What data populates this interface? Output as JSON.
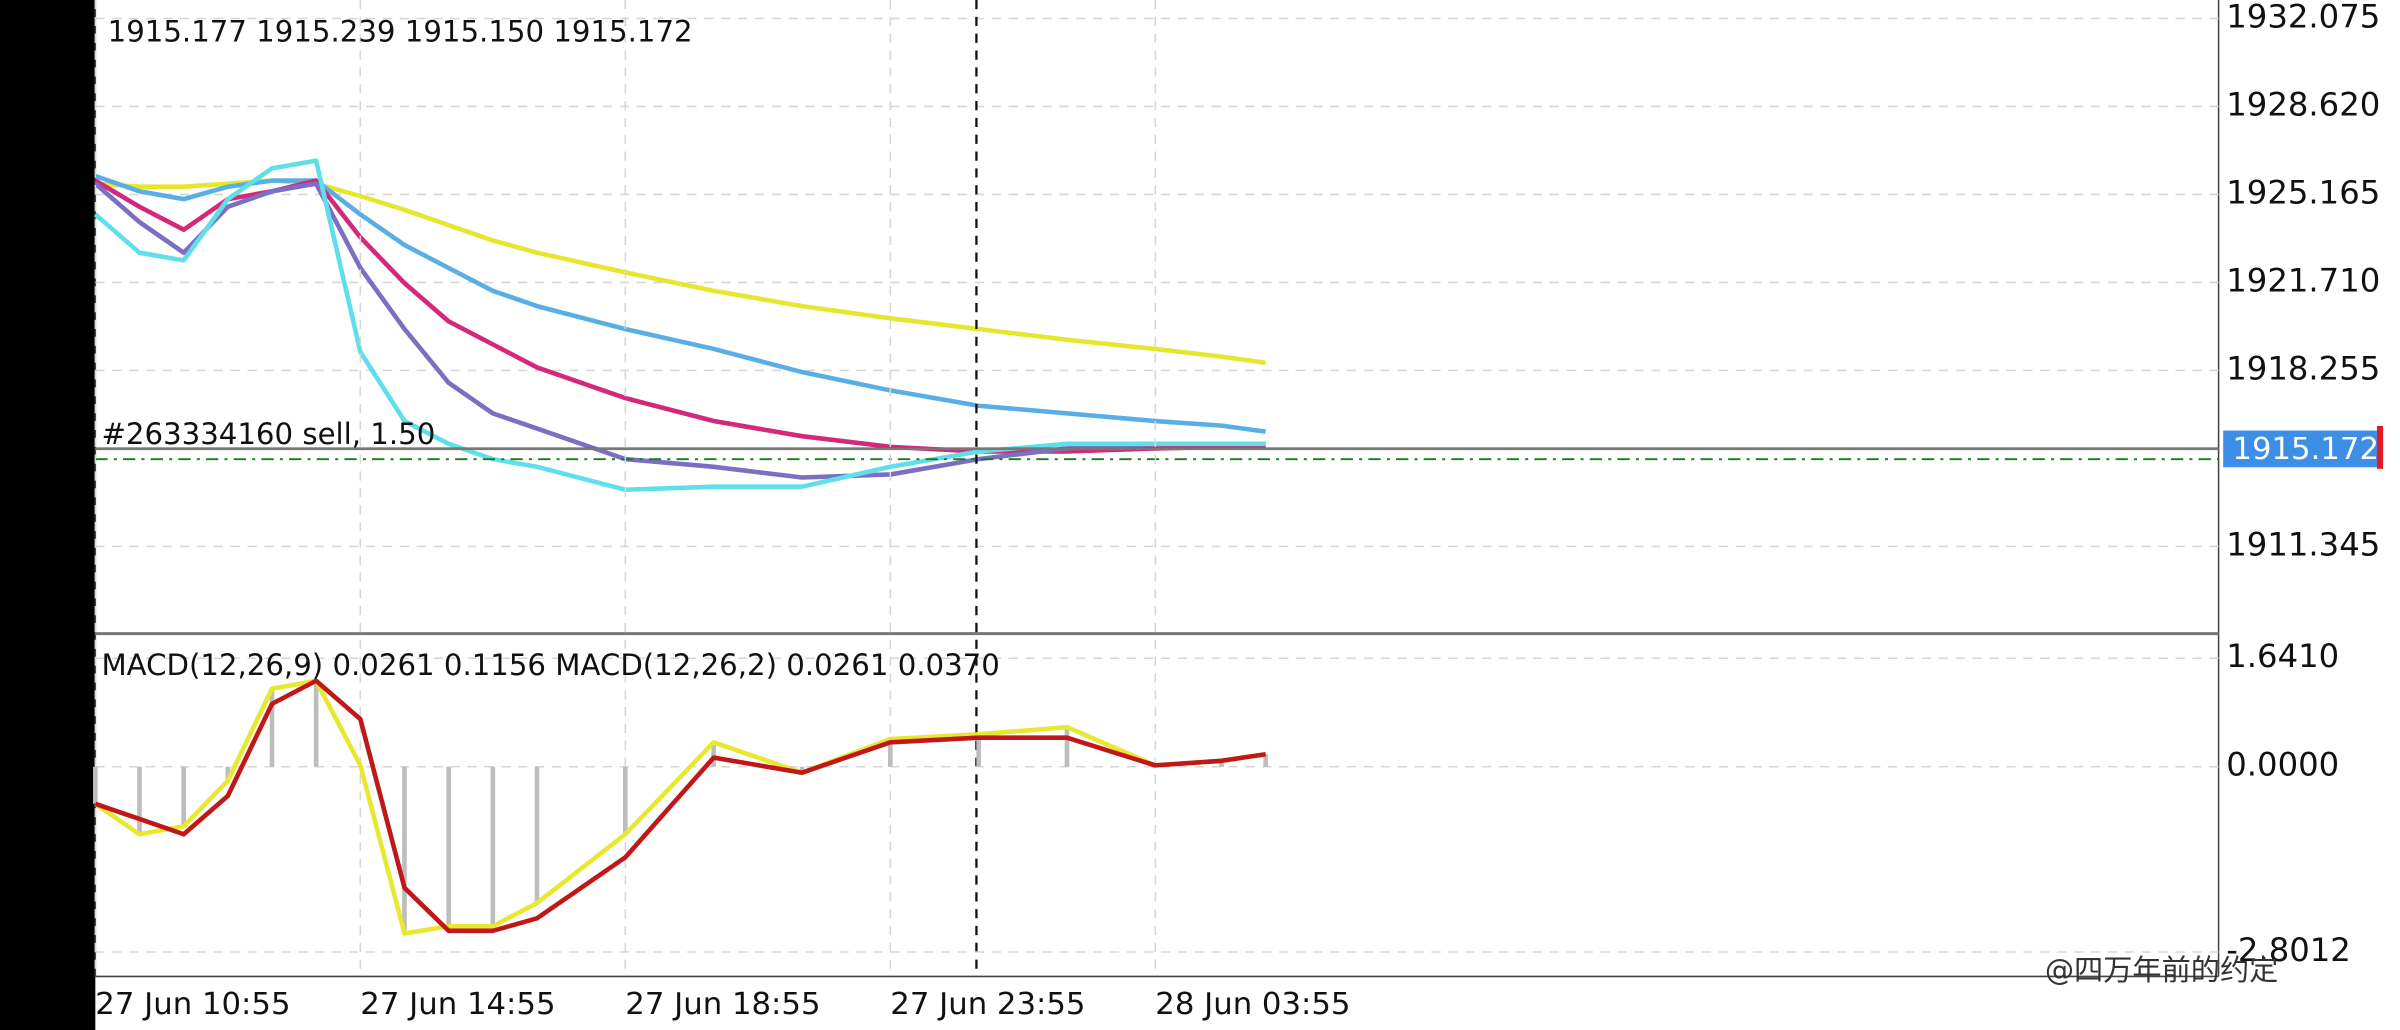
{
  "chart_data": [
    {
      "type": "line",
      "ohlc_text": "1915.177 1915.239 1915.150 1915.172",
      "order_label": "#263334160 sell, 1.50",
      "current_price": 1915.172,
      "order_price": 1915.19,
      "stop_price": 1914.77,
      "crosshair_x": 159.6,
      "x": [
        0,
        8,
        16,
        24,
        32,
        40,
        48,
        56,
        64,
        72,
        80,
        96,
        112,
        128,
        144,
        160,
        176,
        192,
        204,
        212
      ],
      "xlim": [
        0,
        384.6
      ],
      "ylim": [
        1907.98,
        1932.8
      ],
      "yticks": [
        1932.075,
        {
          "value": 1928.62,
          "label": "1928.620"
        },
        1925.165,
        {
          "value": 1921.71,
          "label": "1921.710"
        },
        1918.255,
        1911.345
      ],
      "grid": true,
      "series": [
        {
          "color": "#e6e62e",
          "values": [
            1925.59,
            1925.47,
            1925.47,
            1925.59,
            1925.71,
            1925.59,
            1925.1,
            1924.56,
            1923.96,
            1923.36,
            1922.88,
            1922.1,
            1921.38,
            1920.78,
            1920.3,
            1919.88,
            1919.46,
            1919.1,
            1918.8,
            1918.56
          ]
        },
        {
          "color": "#5aaee6",
          "values": [
            1925.89,
            1925.29,
            1924.98,
            1925.47,
            1925.71,
            1925.71,
            1924.38,
            1923.18,
            1922.28,
            1921.38,
            1920.78,
            1919.88,
            1919.1,
            1918.19,
            1917.47,
            1916.87,
            1916.57,
            1916.27,
            1916.09,
            1915.85
          ]
        },
        {
          "color": "#d4287a",
          "values": [
            1925.71,
            1924.68,
            1923.78,
            1924.98,
            1925.29,
            1925.71,
            1923.48,
            1921.68,
            1920.18,
            1919.28,
            1918.37,
            1917.17,
            1916.27,
            1915.67,
            1915.25,
            1915.07,
            1915.07,
            1915.19,
            1915.25,
            1915.25
          ]
        },
        {
          "color": "#7b6fc4",
          "values": [
            1925.59,
            1924.08,
            1922.88,
            1924.68,
            1925.29,
            1925.59,
            1922.28,
            1919.88,
            1917.77,
            1916.57,
            1915.97,
            1914.77,
            1914.47,
            1914.05,
            1914.17,
            1914.77,
            1915.19,
            1915.37,
            1915.37,
            1915.37
          ]
        },
        {
          "color": "#5fe0e8",
          "values": [
            1924.38,
            1922.88,
            1922.58,
            1924.98,
            1926.19,
            1926.49,
            1918.98,
            1916.27,
            1915.37,
            1914.77,
            1914.47,
            1913.57,
            1913.69,
            1913.69,
            1914.47,
            1915.07,
            1915.37,
            1915.37,
            1915.37,
            1915.37
          ]
        }
      ]
    },
    {
      "type": "line",
      "label": "MACD(12,26,9) 0.0261 0.1156 MACD(12,26,2) 0.0261 0.0370",
      "histogram": true,
      "x": [
        0,
        8,
        16,
        24,
        32,
        40,
        48,
        56,
        64,
        72,
        80,
        96,
        112,
        128,
        144,
        160,
        176,
        192,
        204,
        212
      ],
      "xlim": [
        0,
        384.6
      ],
      "xticks": [
        {
          "value": 0,
          "label": "27 Jun 10:55"
        },
        {
          "value": 48,
          "label": "27 Jun 14:55"
        },
        {
          "value": 96,
          "label": "27 Jun 18:55"
        },
        {
          "value": 144,
          "label": "27 Jun 23:55"
        },
        {
          "value": 192,
          "label": "28 Jun 03:55"
        }
      ],
      "ylim": [
        -3.17,
        1.99
      ],
      "yticks": [
        {
          "value": 1.641,
          "label": "1.6410"
        },
        {
          "value": 0,
          "label": "0.0000"
        },
        {
          "value": -2.8012,
          "label": "-2.8012"
        }
      ],
      "grid": true,
      "series": [
        {
          "color": "#e8e830",
          "values": [
            -0.56,
            -1.02,
            -0.9,
            -0.21,
            1.18,
            1.3,
            0.02,
            -2.52,
            -2.41,
            -2.41,
            -2.06,
            -1.02,
            0.37,
            -0.09,
            0.42,
            0.49,
            0.6,
            0.02,
            0.09,
            0.19
          ]
        },
        {
          "color": "#c01818",
          "values": [
            -0.56,
            -0.79,
            -1.02,
            -0.44,
            0.95,
            1.3,
            0.72,
            -1.83,
            -2.48,
            -2.48,
            -2.29,
            -1.37,
            0.14,
            -0.09,
            0.37,
            0.44,
            0.44,
            0.02,
            0.09,
            0.19
          ]
        }
      ]
    }
  ],
  "watermark": "@四万年前的约定"
}
